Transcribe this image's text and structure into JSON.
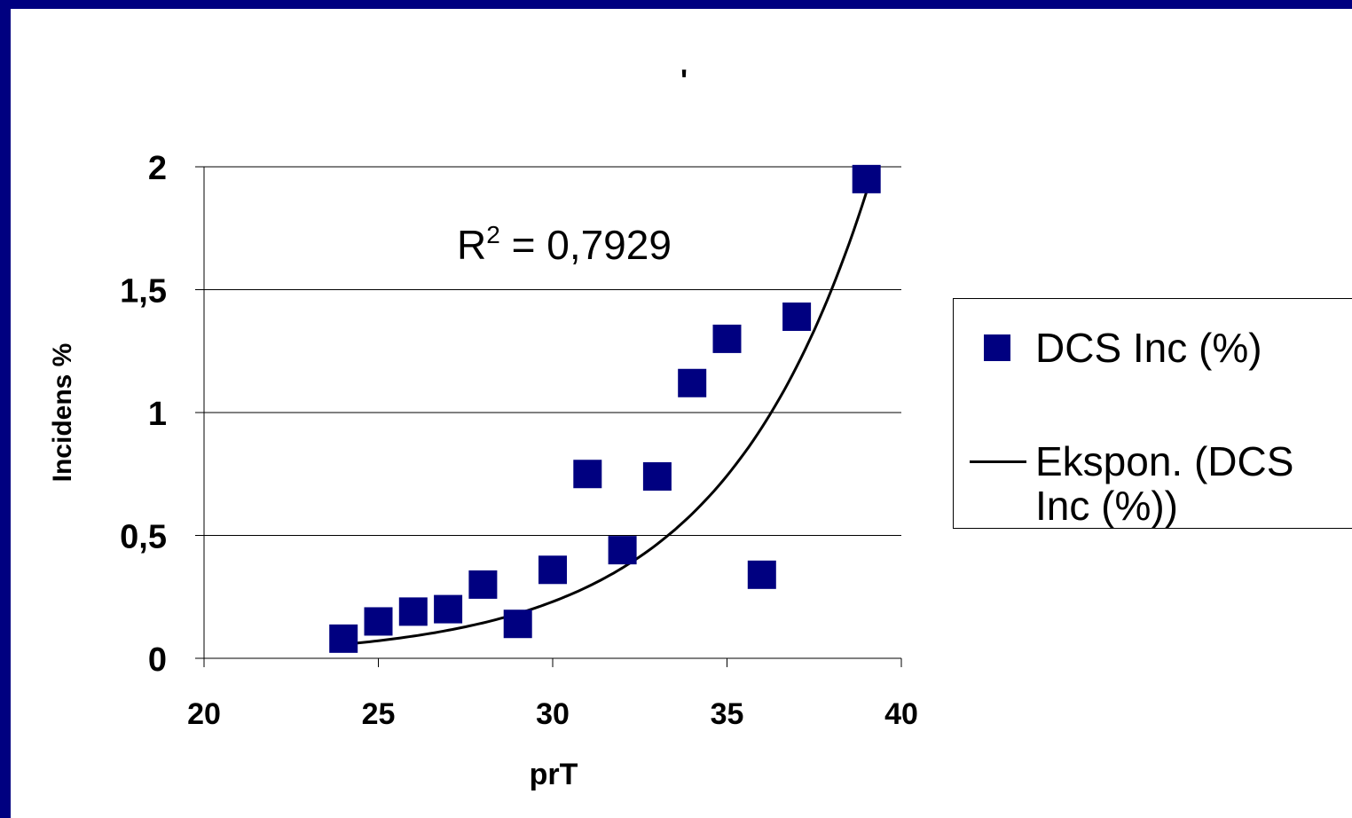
{
  "chart_data": {
    "type": "scatter",
    "title": "'",
    "xlabel": "prT",
    "ylabel": "Incidens %",
    "xlim": [
      20,
      40
    ],
    "ylim": [
      0,
      2
    ],
    "x_ticks": [
      "20",
      "25",
      "30",
      "35",
      "40"
    ],
    "y_ticks": [
      "0",
      "0,5",
      "1",
      "1,5",
      "2"
    ],
    "grid": "horizontal",
    "legend_position": "right",
    "series": [
      {
        "name": "DCS Inc (%)",
        "color": "#000080",
        "marker": "square",
        "x": [
          24,
          25,
          26,
          27,
          28,
          29,
          30,
          31,
          32,
          33,
          34,
          35,
          36,
          37,
          39
        ],
        "y": [
          0.08,
          0.15,
          0.19,
          0.2,
          0.3,
          0.14,
          0.36,
          0.75,
          0.44,
          0.74,
          1.12,
          1.3,
          0.34,
          1.39,
          1.95
        ]
      },
      {
        "name": "Ekspon. (DCS Inc (%))",
        "color": "#000000",
        "type": "trendline-exponential",
        "a": 0.000204,
        "b": 0.2343,
        "x_range": [
          24,
          39
        ]
      }
    ],
    "annotation": {
      "r2_label": "R",
      "r2_sup": "2",
      "r2_value": " = 0,7929"
    }
  },
  "legend": {
    "item1": "DCS Inc (%)",
    "item2": "Ekspon. (DCS Inc (%))"
  }
}
